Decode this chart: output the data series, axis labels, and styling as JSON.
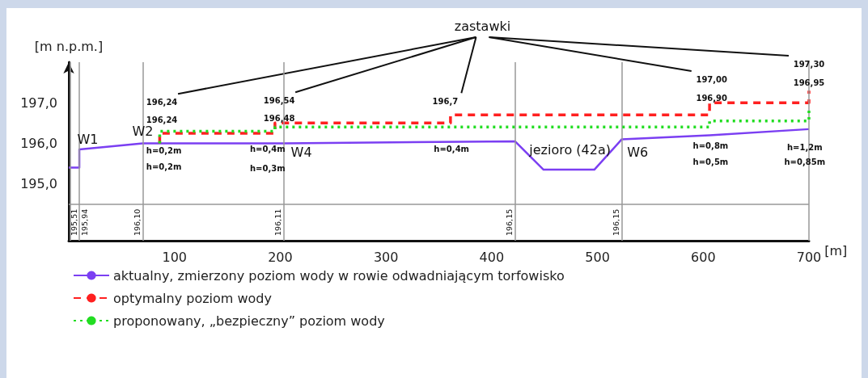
{
  "chart_data": {
    "type": "line",
    "ylabel": "[m n.p.m.]",
    "xlabel": "[m]",
    "xlim": [
      0,
      700
    ],
    "xticks": [
      100,
      200,
      300,
      400,
      500,
      600,
      700
    ],
    "ylim": [
      193.6,
      198.0
    ],
    "yticks": [
      {
        "value": 195,
        "label": "195,0"
      },
      {
        "value": 196,
        "label": "196,0"
      },
      {
        "value": 197,
        "label": "197,0"
      }
    ],
    "grid": false,
    "legend": "bottom",
    "marker": "none",
    "series": [
      {
        "name": "aktualny, zmierzony poziom wody w rowie odwadniającym torfowisko",
        "color": "#7b3ff2",
        "line_style": "solid",
        "x": [
          0,
          10,
          10,
          70,
          203,
          422,
          449,
          497,
          523,
          606,
          700
        ],
        "values": [
          195.4,
          195.4,
          195.85,
          196.0,
          196.0,
          196.05,
          195.35,
          195.35,
          196.1,
          196.2,
          196.35
        ]
      },
      {
        "name": "optymalny poziom wody",
        "color": "#ff2020",
        "line_style": "dashed",
        "x": [
          86,
          86,
          195,
          195,
          361,
          361,
          606,
          606,
          700,
          700
        ],
        "values": [
          196.0,
          196.25,
          196.25,
          196.5,
          196.5,
          196.7,
          196.7,
          197.0,
          197.0,
          197.3
        ]
      },
      {
        "name": "proponowany, „bezpieczny” poziom wody",
        "color": "#22dd22",
        "line_style": "dotted",
        "x": [
          86,
          86,
          195,
          195,
          606,
          606,
          700,
          700
        ],
        "values": [
          196.0,
          196.3,
          196.3,
          196.4,
          196.4,
          196.55,
          196.55,
          196.85
        ]
      }
    ],
    "ref_lines": [
      {
        "axis": "x",
        "value": 1,
        "label": null,
        "color": "#999999"
      },
      {
        "axis": "x",
        "value": 10,
        "label": null,
        "color": "#999999"
      },
      {
        "axis": "x",
        "value": 70,
        "label": null,
        "color": "#999999"
      },
      {
        "axis": "x",
        "value": 203,
        "label": null,
        "color": "#999999"
      },
      {
        "axis": "x",
        "value": 422,
        "label": null,
        "color": "#999999"
      },
      {
        "axis": "x",
        "value": 523,
        "label": null,
        "color": "#999999"
      },
      {
        "axis": "x",
        "value": 700,
        "label": null,
        "color": "#999999"
      },
      {
        "axis": "y",
        "value": 194.5,
        "label": null,
        "color": "#999999"
      }
    ],
    "annotations": [
      "W1",
      "W2",
      "W4",
      "W6",
      "jezioro (42a)",
      "zastawki",
      "196,24",
      "196,24",
      "h=0,2m",
      "h=0,2m",
      "196,54",
      "196,48",
      "h=0,4m",
      "h=0,3m",
      "196,7",
      "h=0,4m",
      "197,00",
      "196,90",
      "h=0,8m",
      "h=0,5m",
      "197,30",
      "196,95",
      "h=1,2m",
      "h=0,85m",
      "195,51",
      "195,94",
      "196,10",
      "196,11",
      "196,15",
      "196,15"
    ]
  }
}
